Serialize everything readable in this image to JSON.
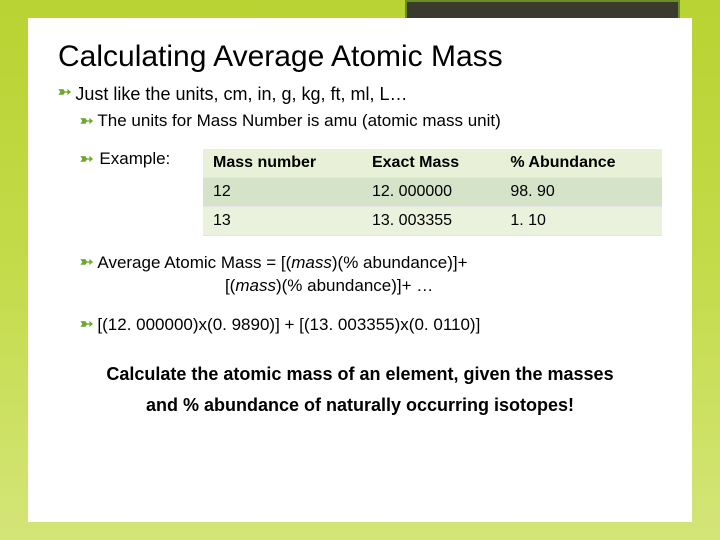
{
  "title": "Calculating Average Atomic Mass",
  "line1": "Just like the units, cm, in, g, kg, ft, ml, L…",
  "line2": "The units for Mass Number is amu (atomic mass unit)",
  "example_label": "Example:",
  "table": {
    "headers": [
      "Mass number",
      "Exact Mass",
      "% Abundance"
    ],
    "rows": [
      [
        "12",
        "12. 000000",
        "98. 90"
      ],
      [
        "13",
        "13. 003355",
        "1. 10"
      ]
    ]
  },
  "formula_line1_a": "Average Atomic Mass = [(",
  "formula_line1_b": "mass",
  "formula_line1_c": ")(% abundance)]+",
  "formula_line2_a": "[(",
  "formula_line2_b": "mass",
  "formula_line2_c": ")(% abundance)]+ …",
  "calc_line": "[(12. 000000)x(0. 9890)] + [(13. 003355)x(0. 0110)]",
  "footer1": "Calculate the atomic mass of an  element, given the masses",
  "footer2": "and  % abundance of naturally occurring isotopes!",
  "colors": {
    "bullet": "#6ea82e",
    "header_bg": "#e8f0d8",
    "row_odd": "#d5e3c8",
    "row_even": "#eaf1dd"
  }
}
